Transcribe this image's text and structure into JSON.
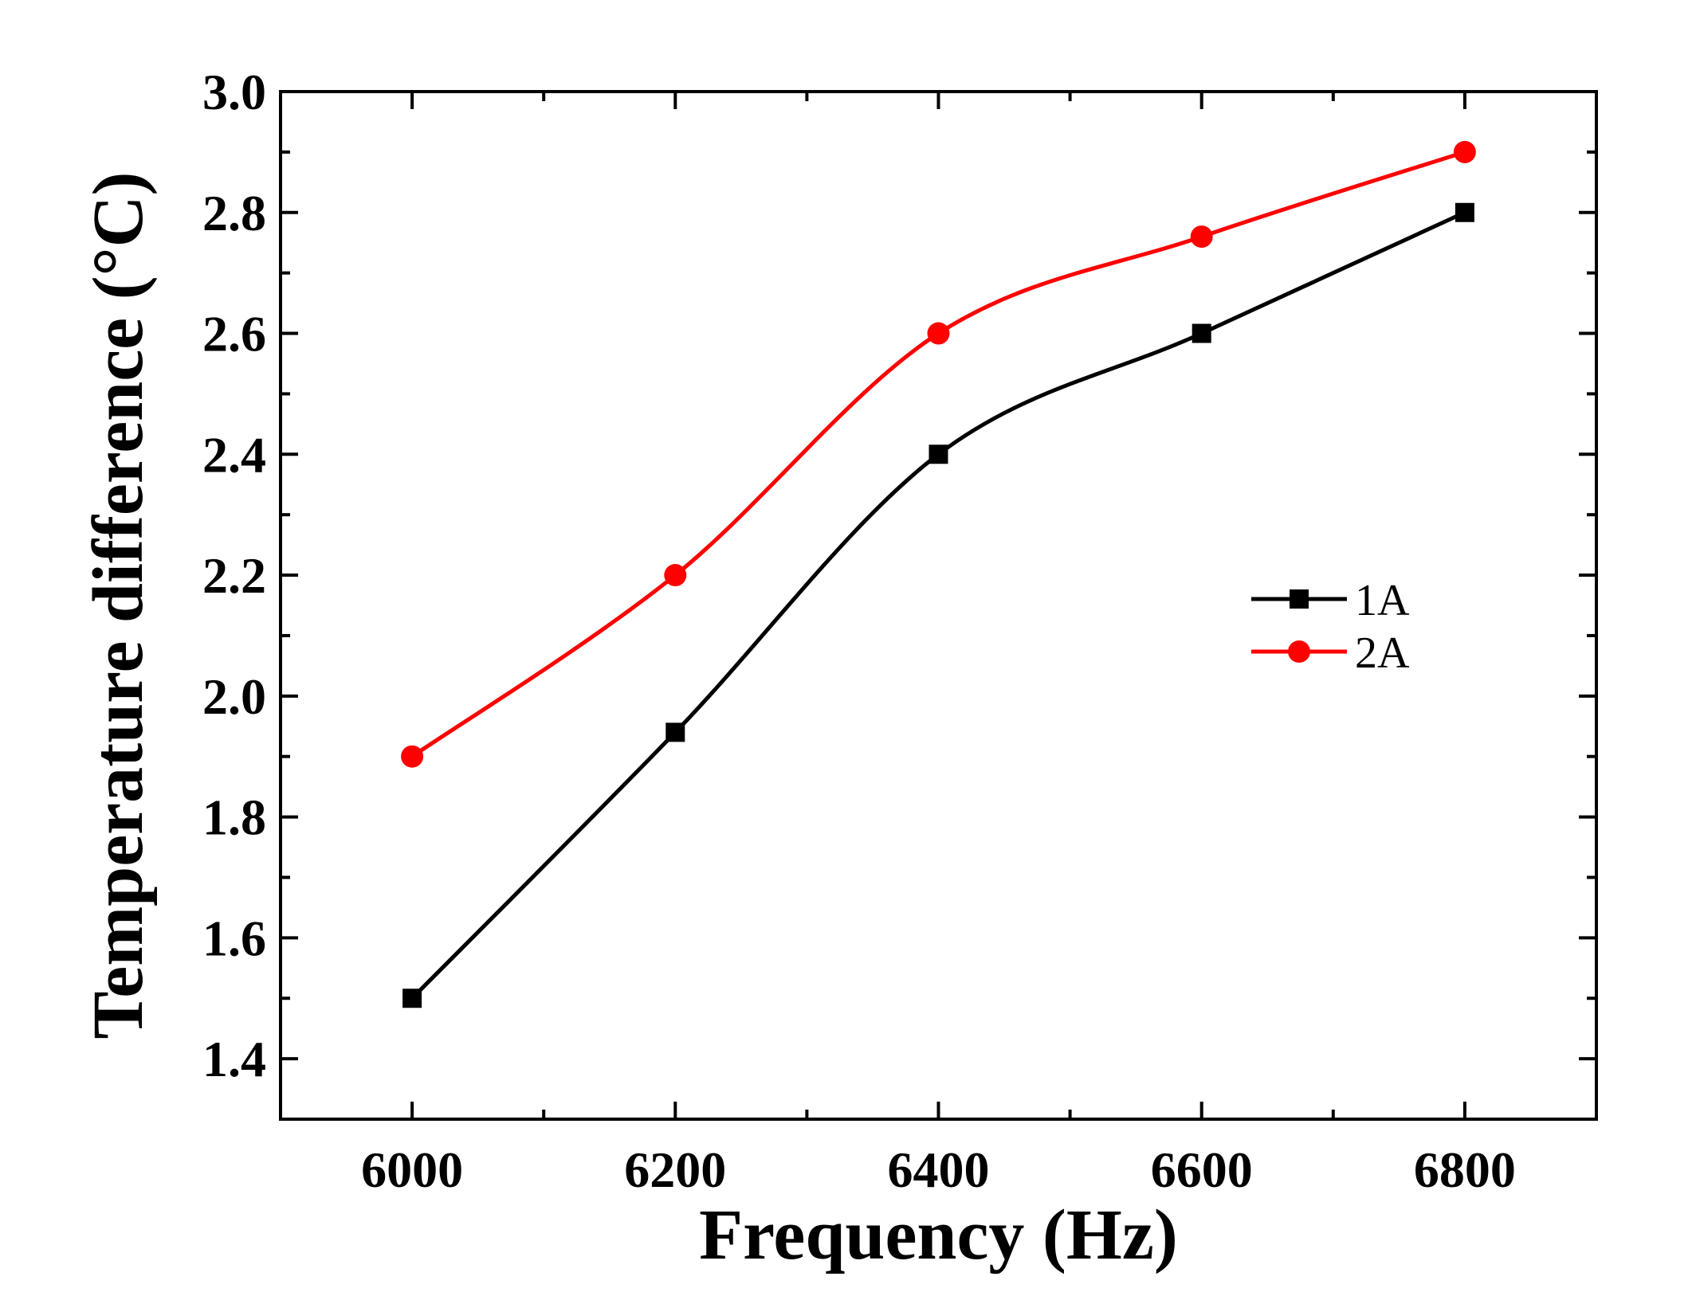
{
  "chart_data": {
    "type": "line",
    "title": "",
    "xlabel": "Frequency (Hz)",
    "ylabel": "Temperature difference (°C)",
    "xlim": [
      5900,
      6900
    ],
    "ylim": [
      1.3,
      3.0
    ],
    "x_ticks": [
      6000,
      6200,
      6400,
      6600,
      6800
    ],
    "x_minor_ticks": [
      6100,
      6300,
      6500,
      6700
    ],
    "x_tick_labels": [
      "6000",
      "6200",
      "6400",
      "6600",
      "6800"
    ],
    "y_ticks": [
      1.4,
      1.6,
      1.8,
      2.0,
      2.2,
      2.4,
      2.6,
      2.8,
      3.0
    ],
    "y_minor_ticks": [
      1.5,
      1.7,
      1.9,
      2.1,
      2.3,
      2.5,
      2.7,
      2.9
    ],
    "y_tick_labels": [
      "1.4",
      "1.6",
      "1.8",
      "2.0",
      "2.2",
      "2.4",
      "2.6",
      "2.8",
      "3.0"
    ],
    "grid": false,
    "legend_position": "right-center",
    "x": [
      6000,
      6200,
      6400,
      6600,
      6800
    ],
    "series": [
      {
        "name": "1A",
        "color": "#000000",
        "marker": "square",
        "values": [
          1.5,
          1.94,
          2.4,
          2.6,
          2.8
        ]
      },
      {
        "name": "2A",
        "color": "#ff0000",
        "marker": "circle",
        "values": [
          1.9,
          2.2,
          2.6,
          2.76,
          2.9
        ]
      }
    ]
  }
}
